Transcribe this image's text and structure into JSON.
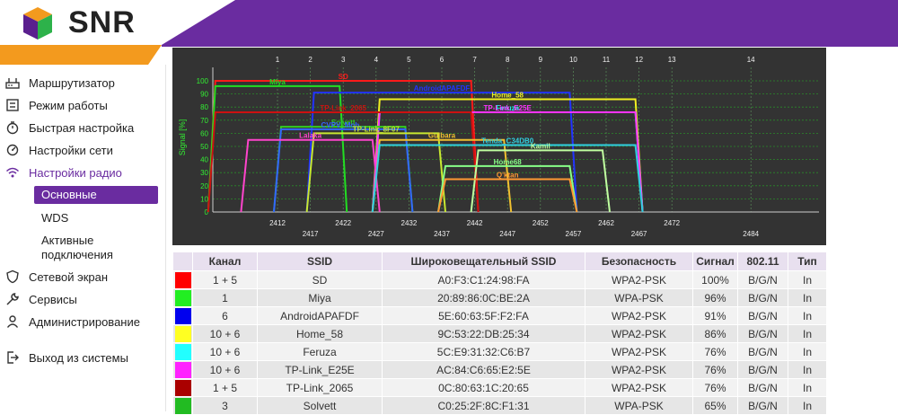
{
  "brand": {
    "name": "SNR",
    "purple": "#6a2ca0",
    "orange": "#f39a1e"
  },
  "sidebar": {
    "items": [
      {
        "label": "Маршрутизатор",
        "icon": "router-icon"
      },
      {
        "label": "Режим работы",
        "icon": "mode-icon"
      },
      {
        "label": "Быстрая настройка",
        "icon": "stopwatch-icon"
      },
      {
        "label": "Настройки сети",
        "icon": "network-settings-icon"
      },
      {
        "label": "Настройки радио",
        "icon": "wifi-icon"
      },
      {
        "label": "Сетевой экран",
        "icon": "shield-icon"
      },
      {
        "label": "Сервисы",
        "icon": "wrench-icon"
      },
      {
        "label": "Администрирование",
        "icon": "admin-icon"
      },
      {
        "label": "Выход из системы",
        "icon": "logout-icon"
      }
    ],
    "sub_items": [
      {
        "label": "Основные",
        "active": true
      },
      {
        "label": "WDS",
        "active": false
      },
      {
        "label": "Активные подключения",
        "active": false
      }
    ]
  },
  "chart_data": {
    "type": "area",
    "ylabel": "Signal [%]",
    "ylim": [
      0,
      100
    ],
    "yticks": [
      0,
      10,
      20,
      30,
      40,
      50,
      60,
      70,
      80,
      90,
      100
    ],
    "channels_top": [
      "1",
      "2",
      "3",
      "4",
      "5",
      "6",
      "7",
      "8",
      "9",
      "10",
      "11",
      "12",
      "13",
      "14"
    ],
    "freqs_row1": [
      "2412",
      "2422",
      "2432",
      "2442",
      "2452",
      "2462",
      "2472"
    ],
    "freqs_row2": [
      "2417",
      "2427",
      "2437",
      "2447",
      "2457",
      "2467",
      "2484"
    ],
    "networks": [
      {
        "ssid": "SD",
        "color": "#ff1a1a",
        "center": 3,
        "width": 40,
        "signal": 100
      },
      {
        "ssid": "Miya",
        "color": "#22dd22",
        "center": 1,
        "width": 20,
        "signal": 96
      },
      {
        "ssid": "AndroidAPAFDF",
        "color": "#2233ff",
        "center": 6,
        "width": 40,
        "signal": 91
      },
      {
        "ssid": "Home_58",
        "color": "#f0f020",
        "center": 8,
        "width": 40,
        "signal": 86
      },
      {
        "ssid": "Feruza",
        "color": "#20e8e8",
        "center": 8,
        "width": 40,
        "signal": 76
      },
      {
        "ssid": "TP-Link_E25E",
        "color": "#ff33ff",
        "center": 8,
        "width": 40,
        "signal": 76
      },
      {
        "ssid": "TP-Link_2065",
        "color": "#cc1111",
        "center": 3,
        "width": 40,
        "signal": 76
      },
      {
        "ssid": "Solvett",
        "color": "#33cc22",
        "center": 3,
        "width": 20,
        "signal": 65
      },
      {
        "ssid": "CVPV_Mob...",
        "color": "#3366ff",
        "center": 3,
        "width": 20,
        "signal": 63
      },
      {
        "ssid": "TP-Link_8F07",
        "color": "#c8e830",
        "center": 4,
        "width": 20,
        "signal": 60
      },
      {
        "ssid": "Gulbara",
        "color": "#f0c030",
        "center": 6,
        "width": 20,
        "signal": 55
      },
      {
        "ssid": "Lalaka",
        "color": "#ff44cc",
        "center": 2,
        "width": 20,
        "signal": 55
      },
      {
        "ssid": "Tenda_C34DB0",
        "color": "#30d0e0",
        "center": 8,
        "width": 40,
        "signal": 51
      },
      {
        "ssid": "Kamil",
        "color": "#c0ffa0",
        "center": 9,
        "width": 20,
        "signal": 47
      },
      {
        "ssid": "Home68",
        "color": "#88ff88",
        "center": 8,
        "width": 20,
        "signal": 35
      },
      {
        "ssid": "Q'ktan",
        "color": "#ff9933",
        "center": 8,
        "width": 20,
        "signal": 25
      }
    ]
  },
  "table": {
    "headers": [
      "",
      "Канал",
      "SSID",
      "Широковещательный SSID",
      "Безопасность",
      "Сигнал",
      "802.11",
      "Тип"
    ],
    "rows": [
      {
        "color": "#ff0000",
        "channel": "1 + 5",
        "ssid": "SD",
        "bssid": "A0:F3:C1:24:98:FA",
        "security": "WPA2-PSK",
        "signal": "100%",
        "mode": "B/G/N",
        "type": "In"
      },
      {
        "color": "#22ee22",
        "channel": "1",
        "ssid": "Miya",
        "bssid": "20:89:86:0C:BE:2A",
        "security": "WPA-PSK",
        "signal": "96%",
        "mode": "B/G/N",
        "type": "In"
      },
      {
        "color": "#0000ee",
        "channel": "6",
        "ssid": "AndroidAPAFDF",
        "bssid": "5E:60:63:5F:F2:FA",
        "security": "WPA2-PSK",
        "signal": "91%",
        "mode": "B/G/N",
        "type": "In"
      },
      {
        "color": "#ffff22",
        "channel": "10 + 6",
        "ssid": "Home_58",
        "bssid": "9C:53:22:DB:25:34",
        "security": "WPA2-PSK",
        "signal": "86%",
        "mode": "B/G/N",
        "type": "In"
      },
      {
        "color": "#22ffff",
        "channel": "10 + 6",
        "ssid": "Feruza",
        "bssid": "5C:E9:31:32:C6:B7",
        "security": "WPA2-PSK",
        "signal": "76%",
        "mode": "B/G/N",
        "type": "In"
      },
      {
        "color": "#ff22ff",
        "channel": "10 + 6",
        "ssid": "TP-Link_E25E",
        "bssid": "AC:84:C6:65:E2:5E",
        "security": "WPA2-PSK",
        "signal": "76%",
        "mode": "B/G/N",
        "type": "In"
      },
      {
        "color": "#aa0000",
        "channel": "1 + 5",
        "ssid": "TP-Link_2065",
        "bssid": "0C:80:63:1C:20:65",
        "security": "WPA2-PSK",
        "signal": "76%",
        "mode": "B/G/N",
        "type": "In"
      },
      {
        "color": "#22bb22",
        "channel": "3",
        "ssid": "Solvett",
        "bssid": "C0:25:2F:8C:F1:31",
        "security": "WPA-PSK",
        "signal": "65%",
        "mode": "B/G/N",
        "type": "In"
      }
    ]
  }
}
